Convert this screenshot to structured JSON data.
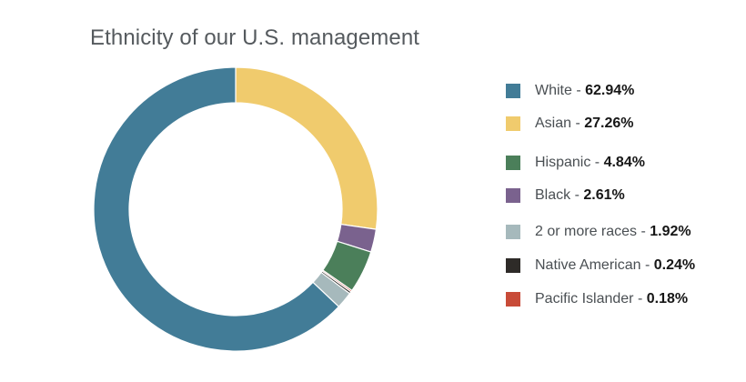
{
  "chart_data": {
    "type": "pie",
    "variant": "donut",
    "title": "Ethnicity of our U.S. management",
    "categories": [
      "White",
      "Asian",
      "Hispanic",
      "Black",
      "2 or more races",
      "Native American",
      "Pacific Islander"
    ],
    "values": [
      62.94,
      27.26,
      4.84,
      2.61,
      1.92,
      0.24,
      0.18
    ],
    "value_labels": [
      "62.94%",
      "27.26%",
      "4.84%",
      "2.61%",
      "1.92%",
      "0.24%",
      "0.18%"
    ],
    "slice_order_clockwise_from_top": [
      "Asian",
      "Black",
      "Hispanic",
      "Pacific Islander",
      "Native American",
      "2 or more races",
      "White"
    ],
    "colors": {
      "White": "#427c97",
      "Asian": "#f0cb6d",
      "Hispanic": "#4b7f5a",
      "Black": "#7a628e",
      "2 or more races": "#a6b9bc",
      "Native American": "#2e2b28",
      "Pacific Islander": "#c84b38"
    },
    "legend_position": "right"
  },
  "legend": {
    "separator": " - "
  }
}
